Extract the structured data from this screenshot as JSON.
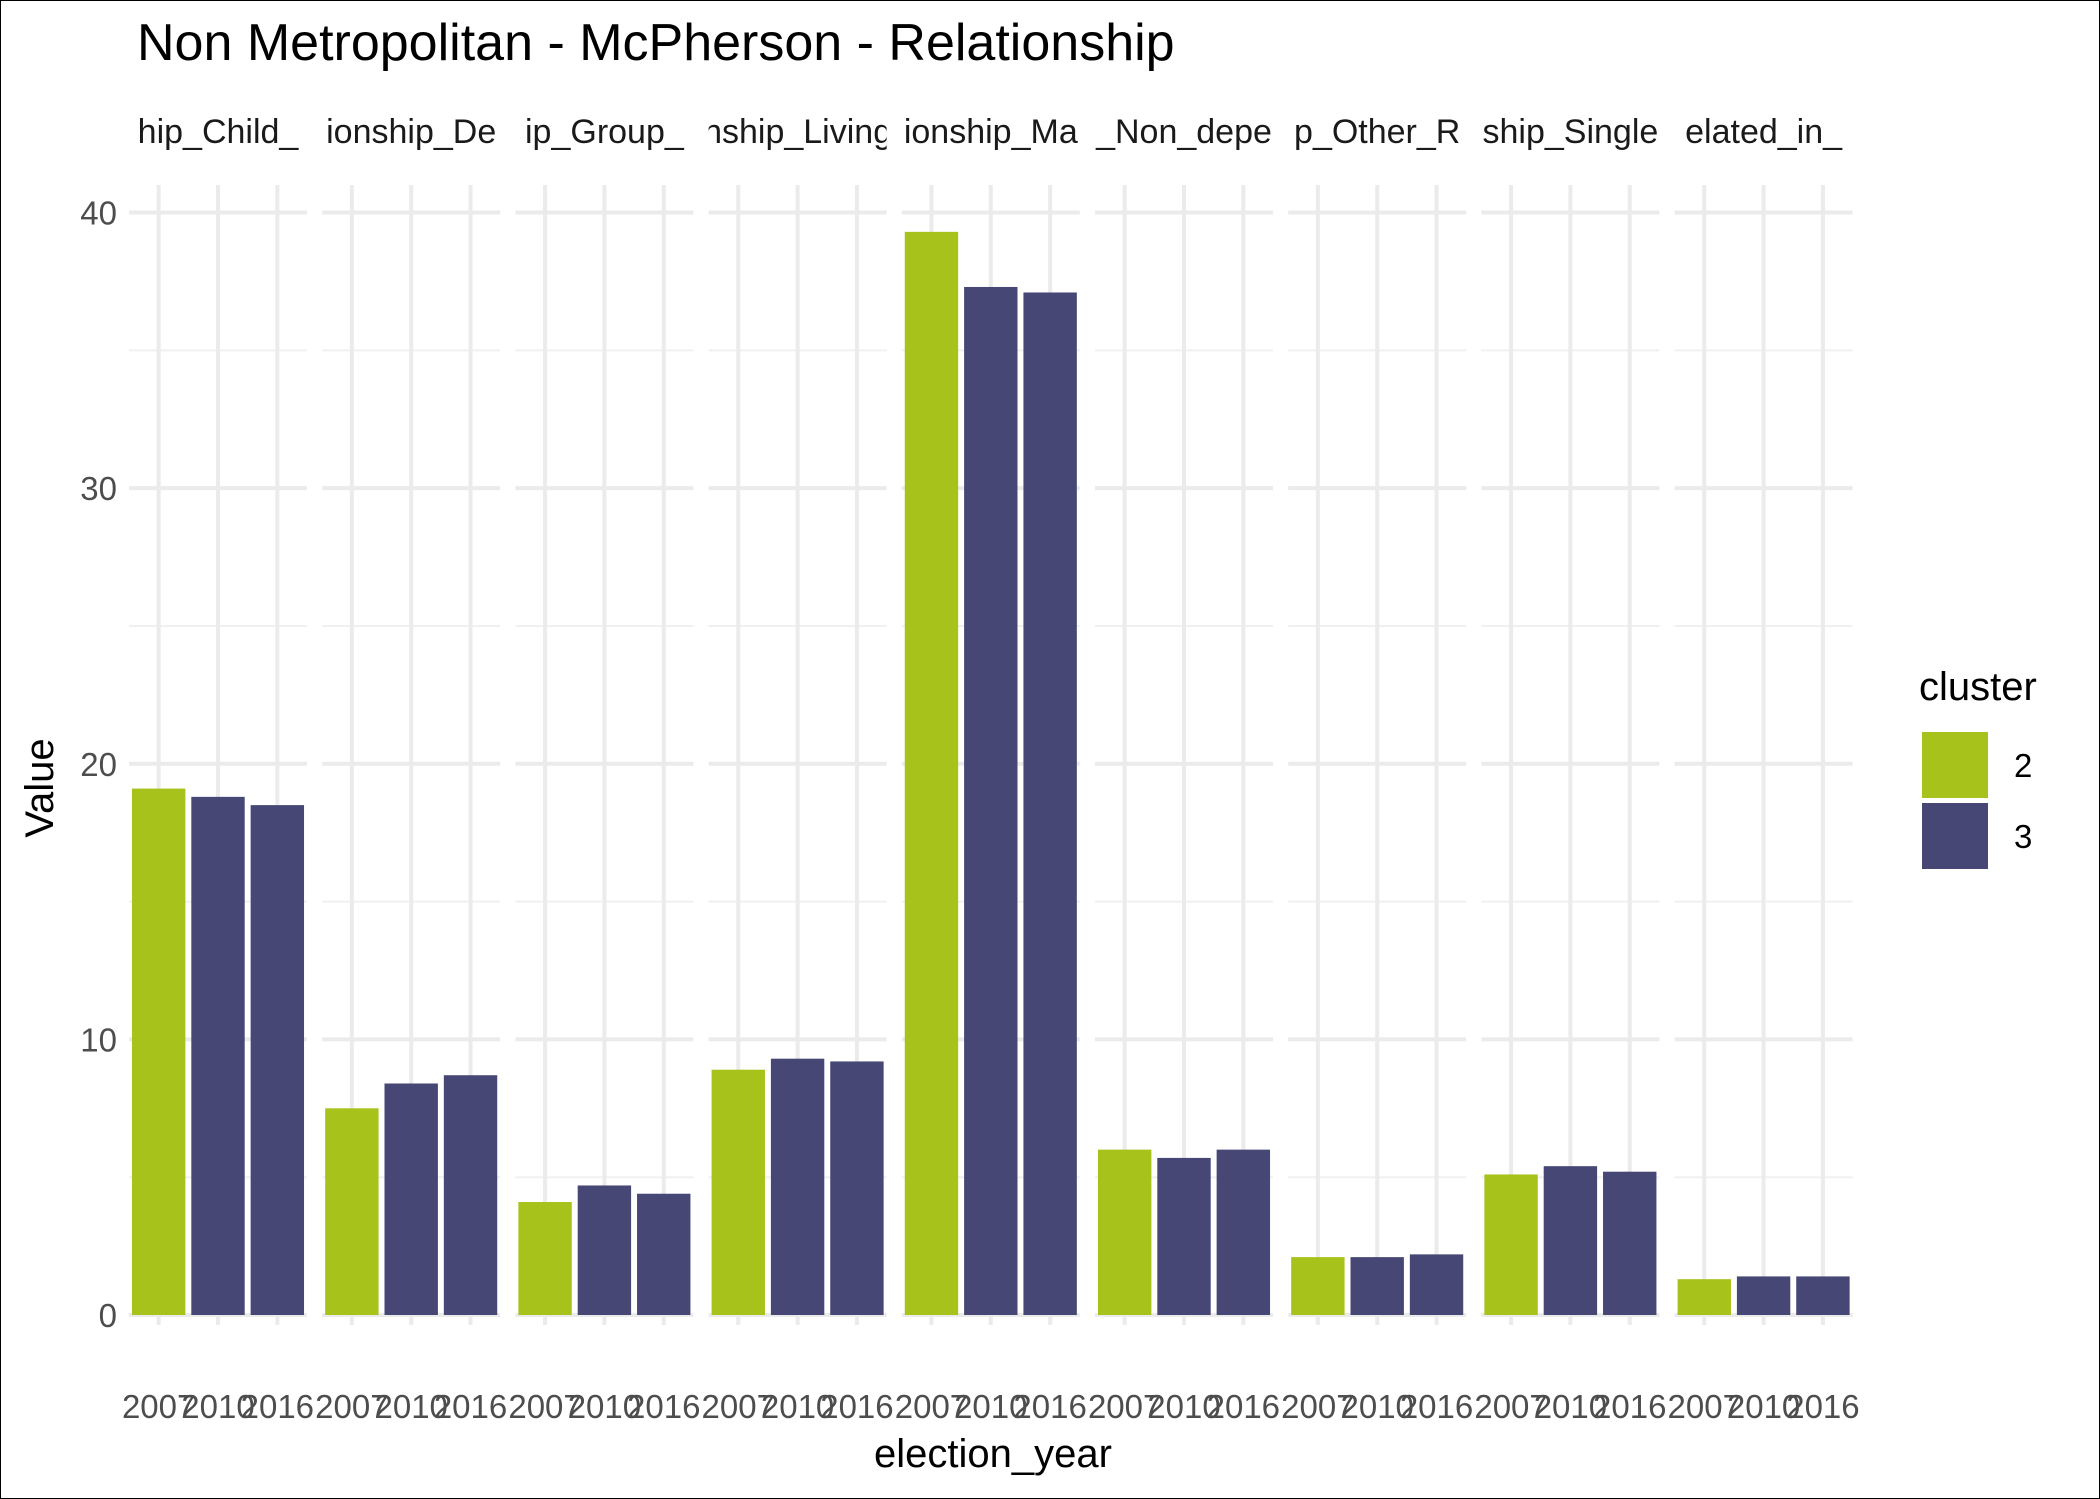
{
  "chart_data": {
    "type": "bar",
    "title": "Non Metropolitan - McPherson - Relationship",
    "xlabel": "election_year",
    "ylabel": "Value",
    "ylim": [
      0,
      41
    ],
    "yticks": [
      0,
      10,
      20,
      30,
      40
    ],
    "grid": true,
    "legend": {
      "title": "cluster",
      "placement": "right",
      "entries": [
        {
          "label": "2",
          "color": "#A8C21C"
        },
        {
          "label": "3",
          "color": "#464775"
        }
      ]
    },
    "x": [
      "2007",
      "2010",
      "2016"
    ],
    "facets": [
      {
        "strip": "hip_Child_",
        "values": [
          19.1,
          18.8,
          18.5
        ],
        "clusters": [
          "2",
          "3",
          "3"
        ]
      },
      {
        "strip": "ionship_De",
        "values": [
          7.5,
          8.4,
          8.7
        ],
        "clusters": [
          "2",
          "3",
          "3"
        ]
      },
      {
        "strip": "ip_Group_",
        "values": [
          4.1,
          4.7,
          4.4
        ],
        "clusters": [
          "2",
          "3",
          "3"
        ]
      },
      {
        "strip": "nship_Living",
        "values": [
          8.9,
          9.3,
          9.2
        ],
        "clusters": [
          "2",
          "3",
          "3"
        ]
      },
      {
        "strip": "ionship_Ma",
        "values": [
          39.3,
          37.3,
          37.1
        ],
        "clusters": [
          "2",
          "3",
          "3"
        ]
      },
      {
        "strip": "_Non_depe",
        "values": [
          6.0,
          5.7,
          6.0
        ],
        "clusters": [
          "2",
          "3",
          "3"
        ]
      },
      {
        "strip": "p_Other_R",
        "values": [
          2.1,
          2.1,
          2.2
        ],
        "clusters": [
          "2",
          "3",
          "3"
        ]
      },
      {
        "strip": "ship_Single",
        "values": [
          5.1,
          5.4,
          5.2
        ],
        "clusters": [
          "2",
          "3",
          "3"
        ]
      },
      {
        "strip": "elated_in_",
        "values": [
          1.3,
          1.4,
          1.4
        ],
        "clusters": [
          "2",
          "3",
          "3"
        ]
      }
    ]
  }
}
